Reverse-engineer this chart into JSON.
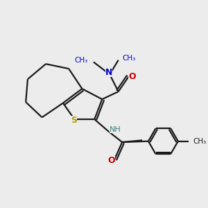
{
  "bg_color": "#ececec",
  "bond_color": "#1a1a1a",
  "S_color": "#b8a000",
  "N_color": "#0000cc",
  "O_color": "#cc0000",
  "NH_color": "#3a8080",
  "figsize": [
    3.0,
    3.0
  ],
  "dpi": 100,
  "xlim": [
    0,
    10
  ],
  "ylim": [
    0,
    10
  ]
}
